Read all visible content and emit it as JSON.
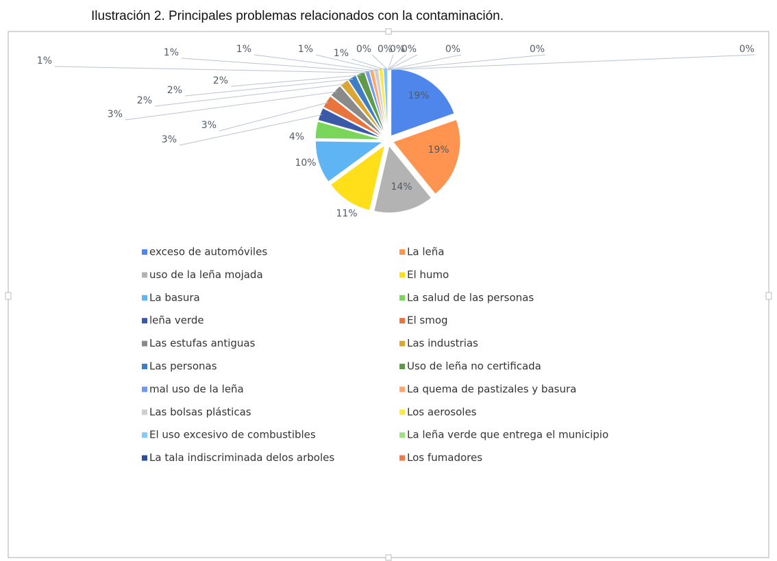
{
  "chart_data": {
    "type": "pie",
    "title": "Ilustración 2. Principales problemas relacionados con la contaminación.",
    "categories": [
      "exceso de automóviles",
      "La leña",
      "uso de la leña mojada",
      "El humo",
      "La basura",
      "La salud de las personas",
      "leña verde",
      "El smog",
      "Las estufas antiguas",
      "Las industrias",
      "Las personas",
      "Uso de leña no certificada",
      "mal uso de la leña",
      "La quema de pastizales y basura",
      "Las bolsas plásticas",
      "Los aerosoles",
      "El uso excesivo de combustibles",
      "La leña verde que entrega el municipio",
      "La tala indiscriminada delos arboles",
      "Los fumadores",
      null,
      null,
      null,
      null
    ],
    "values": [
      19,
      19,
      14,
      11,
      10,
      4,
      3,
      3,
      3,
      2,
      2,
      2,
      1,
      1,
      1,
      1,
      1,
      0,
      0,
      0,
      0,
      0,
      0,
      0
    ],
    "value_labels": [
      "19%",
      "19%",
      "14%",
      "11%",
      "10%",
      "4%",
      "3%",
      "3%",
      "3%",
      "2%",
      "2%",
      "2%",
      "1%",
      "1%",
      "1%",
      "1%",
      "1%",
      "0%",
      "0%",
      "0%",
      "0%",
      "0%",
      "0%",
      "0%"
    ],
    "colors": [
      "#4f86ec",
      "#ff9350",
      "#b3b3b3",
      "#ffdf1a",
      "#5fb4f4",
      "#7ad65a",
      "#3a5aa8",
      "#e8743e",
      "#8a8a8a",
      "#d9a634",
      "#3f7ec2",
      "#5f9a48",
      "#6f9bee",
      "#ffa86e",
      "#cfcfcf",
      "#ffe84d",
      "#86c8f7",
      "#9fe27f",
      "#2e4e9e",
      "#f07b48",
      "#999999",
      "#c99a2a",
      "#4a86c8",
      "#6aa850"
    ]
  }
}
